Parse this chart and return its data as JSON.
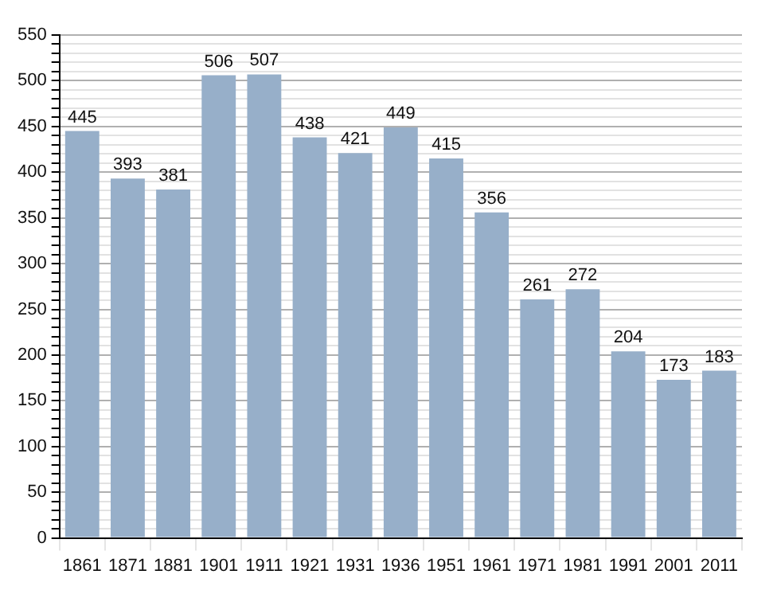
{
  "chart_data": {
    "type": "bar",
    "categories": [
      "1861",
      "1871",
      "1881",
      "1901",
      "1911",
      "1921",
      "1931",
      "1936",
      "1951",
      "1961",
      "1971",
      "1981",
      "1991",
      "2001",
      "2011"
    ],
    "values": [
      445,
      393,
      381,
      506,
      507,
      438,
      421,
      449,
      415,
      356,
      261,
      272,
      204,
      173,
      183
    ],
    "color": "#97afc9",
    "data_labels": true,
    "grid": true,
    "ylim": [
      0,
      550
    ],
    "yticks": [
      0,
      {
        "value": 10,
        "label": null
      },
      {
        "value": 20,
        "label": null
      },
      {
        "value": 30,
        "label": null
      },
      {
        "value": 40,
        "label": null
      },
      50,
      {
        "value": 60,
        "label": null
      },
      {
        "value": 70,
        "label": null
      },
      {
        "value": 80,
        "label": null
      },
      {
        "value": 90,
        "label": null
      },
      100,
      {
        "value": 110,
        "label": null
      },
      {
        "value": 120,
        "label": null
      },
      {
        "value": 130,
        "label": null
      },
      {
        "value": 140,
        "label": null
      },
      150,
      {
        "value": 160,
        "label": null
      },
      {
        "value": 170,
        "label": null
      },
      {
        "value": 180,
        "label": null
      },
      {
        "value": 190,
        "label": null
      },
      200,
      {
        "value": 210,
        "label": null
      },
      {
        "value": 220,
        "label": null
      },
      {
        "value": 230,
        "label": null
      },
      {
        "value": 240,
        "label": null
      },
      250,
      {
        "value": 260,
        "label": null
      },
      {
        "value": 270,
        "label": null
      },
      {
        "value": 280,
        "label": null
      },
      {
        "value": 290,
        "label": null
      },
      300,
      {
        "value": 310,
        "label": null
      },
      {
        "value": 320,
        "label": null
      },
      {
        "value": 330,
        "label": null
      },
      {
        "value": 340,
        "label": null
      },
      350,
      {
        "value": 360,
        "label": null
      },
      {
        "value": 370,
        "label": null
      },
      {
        "value": 380,
        "label": null
      },
      {
        "value": 390,
        "label": null
      },
      400,
      {
        "value": 410,
        "label": null
      },
      {
        "value": 420,
        "label": null
      },
      {
        "value": 430,
        "label": null
      },
      {
        "value": 440,
        "label": null
      },
      450,
      {
        "value": 460,
        "label": null
      },
      {
        "value": 470,
        "label": null
      },
      {
        "value": 480,
        "label": null
      },
      {
        "value": 490,
        "label": null
      },
      500,
      {
        "value": 510,
        "label": null
      },
      {
        "value": 520,
        "label": null
      },
      {
        "value": 530,
        "label": null
      },
      {
        "value": 540,
        "label": null
      },
      550
    ]
  }
}
